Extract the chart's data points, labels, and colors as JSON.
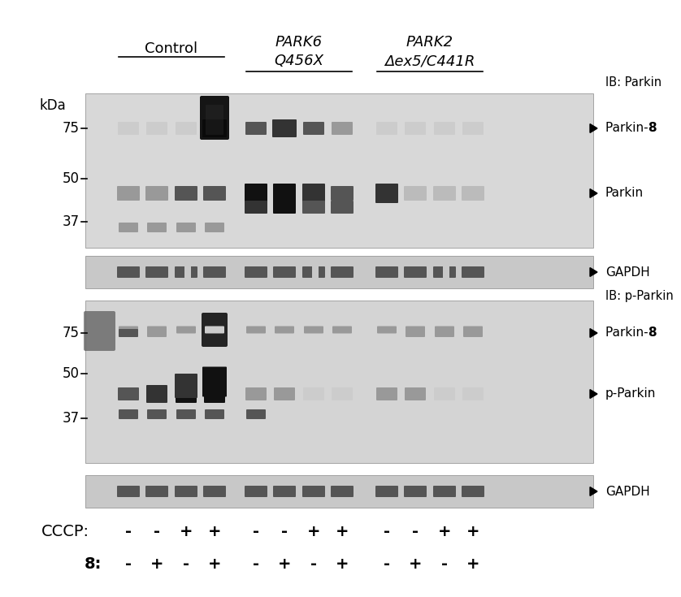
{
  "fig_width": 8.0,
  "fig_height": 7.15,
  "bg_color": "#ffffff",
  "panel_bg": "#d8d8d8",
  "gapdh_bg": "#c8c8c8",
  "dark_band": "#1a1a1a",
  "medium_band": "#555555",
  "light_band": "#aaaaaa",
  "very_light_band": "#cccccc",
  "groups": [
    "Control",
    "PARK6\nQ456X",
    "PARK2\nΔex5/C441R"
  ],
  "group_italic": [
    true,
    true,
    true
  ],
  "cccp_row": [
    "-",
    "-",
    "+",
    "+",
    "-",
    "-",
    "+",
    "+",
    "-",
    "-",
    "+",
    "+"
  ],
  "probe8_row": [
    "-",
    "+",
    "-",
    "+",
    "-",
    "+",
    "-",
    "+",
    "-",
    "+",
    "-",
    "+"
  ],
  "kda_labels": [
    "75",
    "50",
    "37"
  ],
  "right_labels_top": [
    "IB: Parkin",
    "Parkin-8",
    "Parkin",
    "GAPDH"
  ],
  "right_labels_bottom": [
    "IB: p-Parkin",
    "Parkin-8",
    "p-Parkin",
    "GAPDH"
  ]
}
